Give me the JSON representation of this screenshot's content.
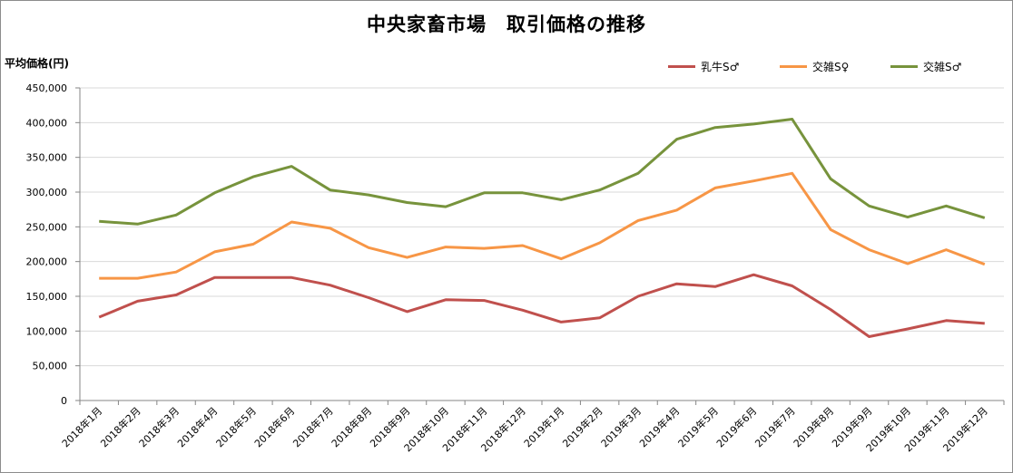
{
  "chart_data": {
    "type": "line",
    "title": "中央家畜市場　取引価格の推移",
    "ylabel": "平均価格(円)",
    "xlabel": "",
    "ylim": [
      0,
      450000
    ],
    "ytick_values": [
      0,
      50000,
      100000,
      150000,
      200000,
      250000,
      300000,
      350000,
      400000,
      450000
    ],
    "ytick_labels": [
      "0",
      "50,000",
      "100,000",
      "150,000",
      "200,000",
      "250,000",
      "300,000",
      "350,000",
      "400,000",
      "450,000"
    ],
    "grid": "horizontal",
    "legend_position": "top-right",
    "categories": [
      "2018年1月",
      "2018年2月",
      "2018年3月",
      "2018年4月",
      "2018年5月",
      "2018年6月",
      "2018年7月",
      "2018年8月",
      "2018年9月",
      "2018年10月",
      "2018年11月",
      "2018年12月",
      "2019年1月",
      "2019年2月",
      "2019年3月",
      "2019年4月",
      "2019年5月",
      "2019年6月",
      "2019年7月",
      "2019年8月",
      "2019年9月",
      "2019年10月",
      "2019年11月",
      "2019年12月"
    ],
    "series": [
      {
        "name": "乳牛S♂",
        "color": "#c0504d",
        "values": [
          120000,
          143000,
          152000,
          177000,
          177000,
          177000,
          166000,
          148000,
          128000,
          145000,
          144000,
          130000,
          113000,
          119000,
          150000,
          168000,
          164000,
          181000,
          165000,
          131000,
          92000,
          103000,
          115000,
          111000
        ]
      },
      {
        "name": "交雑S♀",
        "color": "#f79646",
        "values": [
          176000,
          176000,
          185000,
          214000,
          225000,
          257000,
          248000,
          220000,
          206000,
          221000,
          219000,
          223000,
          204000,
          227000,
          259000,
          274000,
          306000,
          316000,
          327000,
          246000,
          217000,
          197000,
          217000,
          196000
        ]
      },
      {
        "name": "交雑S♂",
        "color": "#77933c",
        "values": [
          258000,
          254000,
          267000,
          299000,
          322000,
          337000,
          303000,
          296000,
          285000,
          279000,
          299000,
          299000,
          289000,
          303000,
          327000,
          376000,
          393000,
          398000,
          405000,
          319000,
          280000,
          264000,
          280000,
          263000
        ]
      }
    ]
  }
}
